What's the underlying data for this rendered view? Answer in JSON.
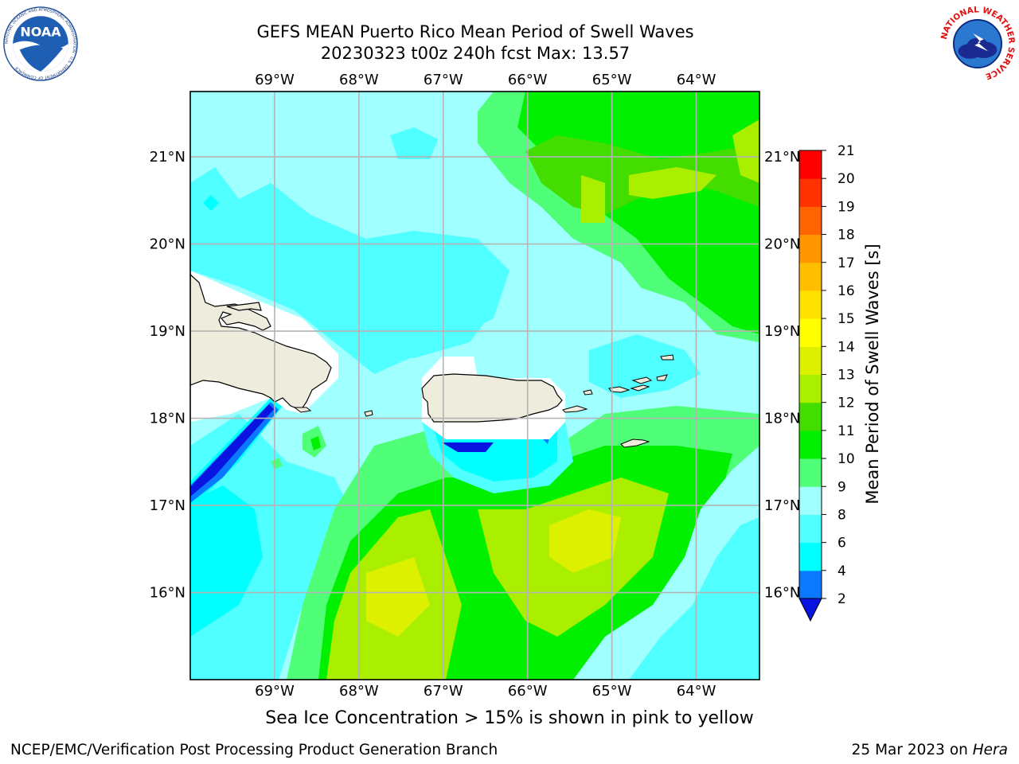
{
  "title_line1": "GEFS MEAN Puerto Rico Mean Period of Swell Waves",
  "title_line2": "20230323 t00z 240h fcst   Max: 13.57",
  "noaa_logo": {
    "icon": "noaa-logo-icon",
    "text": "NOAA",
    "ring_text": "NATIONAL OCEANIC AND ATMOSPHERIC ADMINISTRATION · U.S. DEPARTMENT OF COMMERCE"
  },
  "nws_logo": {
    "icon": "nws-logo-icon",
    "ring_text": "NATIONAL WEATHER SERVICE"
  },
  "map": {
    "lon_range": [
      -70.0,
      -63.25
    ],
    "lat_range": [
      15.0,
      21.75
    ],
    "lon_ticks": [
      {
        "value": -69,
        "label": "69°W"
      },
      {
        "value": -68,
        "label": "68°W"
      },
      {
        "value": -67,
        "label": "67°W"
      },
      {
        "value": -66,
        "label": "66°W"
      },
      {
        "value": -65,
        "label": "65°W"
      },
      {
        "value": -64,
        "label": "64°W"
      }
    ],
    "lat_ticks": [
      {
        "value": 21,
        "label": "21°N"
      },
      {
        "value": 20,
        "label": "20°N"
      },
      {
        "value": 19,
        "label": "19°N"
      },
      {
        "value": 18,
        "label": "18°N"
      },
      {
        "value": 17,
        "label": "17°N"
      },
      {
        "value": 16,
        "label": "16°N"
      }
    ],
    "gridlines": true
  },
  "colorbar": {
    "label": "Mean Period of Swell Waves [s]",
    "tick_labels": [
      "2",
      "4",
      "6",
      "8",
      "9",
      "10",
      "11",
      "12",
      "13",
      "14",
      "15",
      "16",
      "17",
      "18",
      "19",
      "20",
      "21"
    ],
    "colors": [
      "#0a14e0",
      "#0a78ff",
      "#00ffff",
      "#50ffff",
      "#a0ffff",
      "#50ff78",
      "#00f000",
      "#44dd00",
      "#aaee00",
      "#dcf000",
      "#ffff00",
      "#ffe100",
      "#ffbe00",
      "#ff9600",
      "#ff6400",
      "#ff3200",
      "#ff0000"
    ],
    "extend": "min"
  },
  "subtitle": "Sea Ice Concentration > 15% is shown in pink to yellow",
  "footer_left": "NCEP/EMC/Verification Post Processing Product Generation Branch",
  "footer_right_prefix": "25 Mar 2023 on ",
  "footer_right_host": "Hera"
}
